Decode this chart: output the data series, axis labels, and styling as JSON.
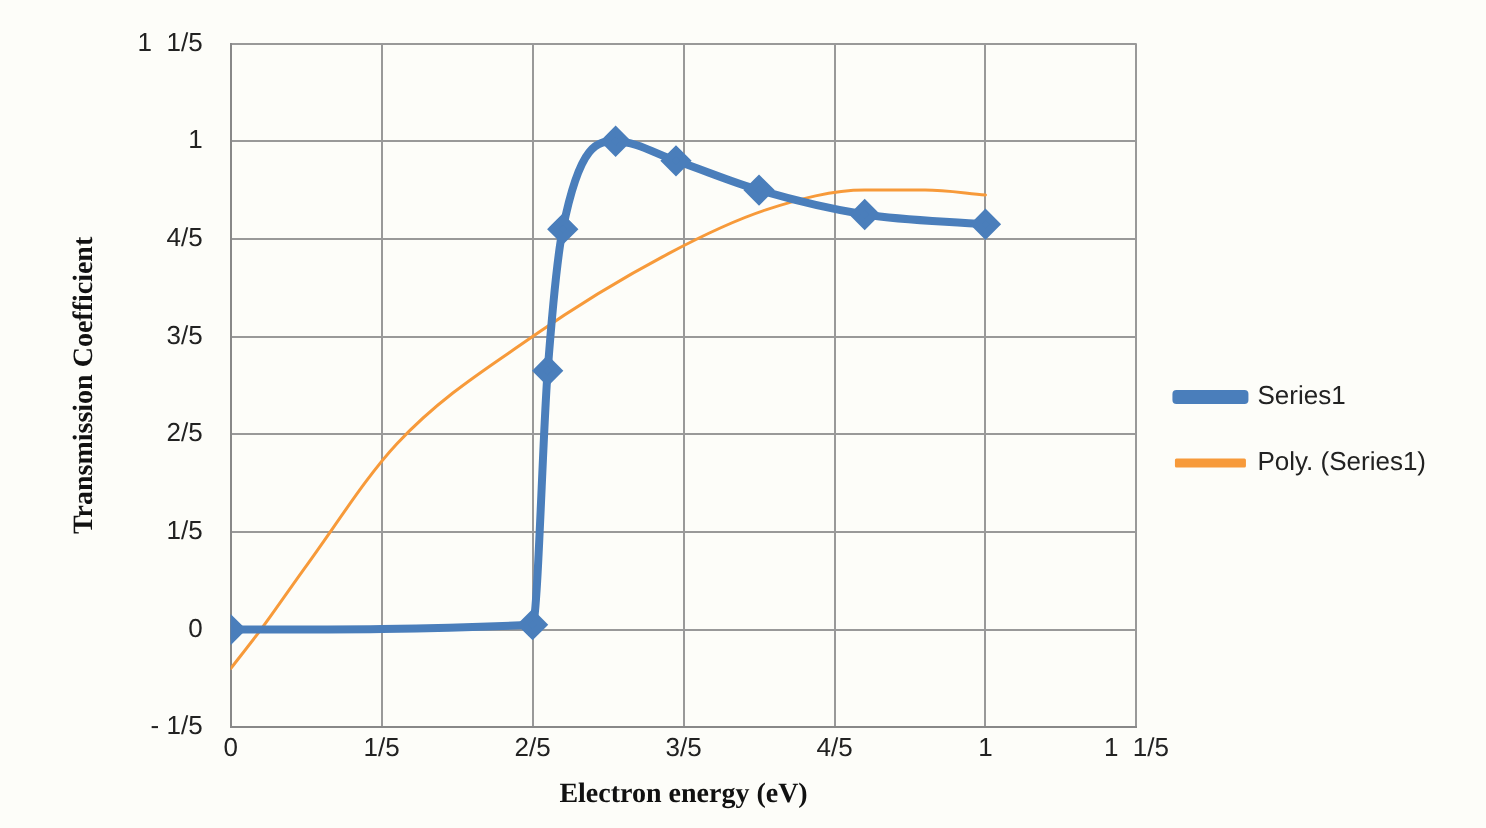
{
  "chart_data": {
    "type": "line",
    "xlabel": "Electron energy (eV)",
    "ylabel": "Transmission Coefficient",
    "xlim": [
      0,
      1.2
    ],
    "xticks": [
      0,
      {
        "value": 0.2,
        "label": "1/5"
      },
      {
        "value": 0.4,
        "label": "2/5"
      },
      {
        "value": 0.6,
        "label": "3/5"
      },
      {
        "value": 0.8,
        "label": "4/5"
      },
      1,
      {
        "value": 1.2,
        "label": "1  1/5"
      }
    ],
    "ylim": [
      -0.2,
      1.2
    ],
    "yticks": [
      {
        "value": -0.2,
        "label": "- 1/5"
      },
      0,
      {
        "value": 0.2,
        "label": "1/5"
      },
      {
        "value": 0.4,
        "label": "2/5"
      },
      {
        "value": 0.6,
        "label": "3/5"
      },
      {
        "value": 0.8,
        "label": "4/5"
      },
      1,
      {
        "value": 1.2,
        "label": "1  1/5"
      }
    ],
    "grid": true,
    "legend": "right",
    "series": [
      {
        "name": "Series1",
        "type": "line",
        "color": "#4a7ebb",
        "marker": "diamond",
        "x": [
          0,
          0.4,
          0.42,
          0.44,
          0.51,
          0.59,
          0.7,
          0.84,
          1.0
        ],
        "values": [
          0,
          0.01,
          0.53,
          0.82,
          1.0,
          0.96,
          0.9,
          0.85,
          0.83
        ]
      },
      {
        "name": "Poly. (Series1)",
        "type": "line",
        "color": "#f79a3a",
        "marker": "none",
        "x": [
          0,
          0.04,
          0.1,
          0.22,
          0.4,
          0.58,
          0.71,
          0.84,
          0.92,
          1.0
        ],
        "values": [
          -0.08,
          0,
          0.13,
          0.38,
          0.6,
          0.77,
          0.86,
          0.9,
          0.9,
          0.89
        ]
      }
    ]
  }
}
